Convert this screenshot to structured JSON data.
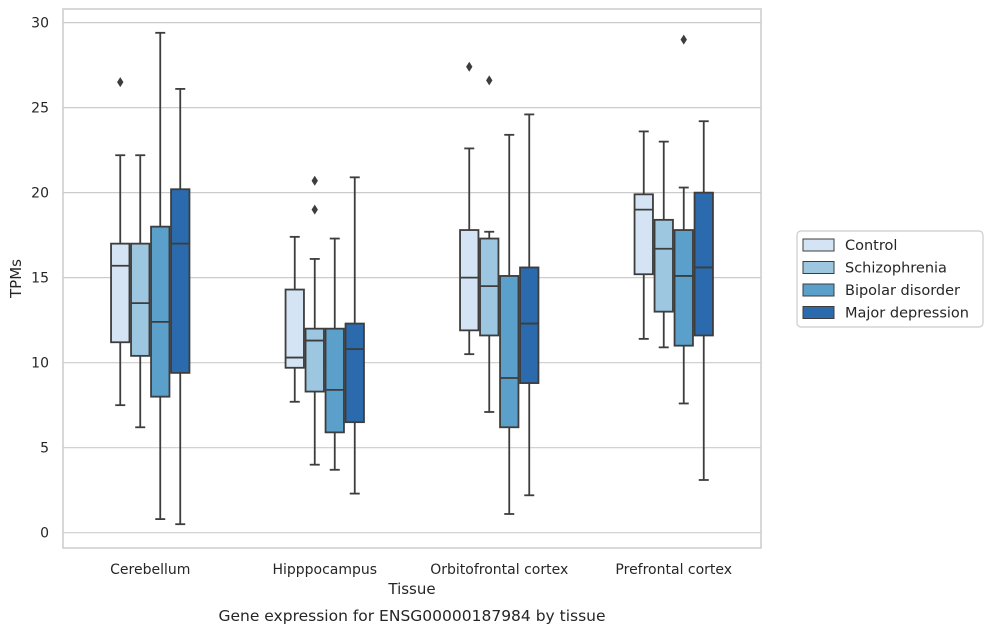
{
  "chart_data": {
    "type": "box",
    "title": "Gene expression for ENSG00000187984 by tissue",
    "xlabel": "Tissue",
    "ylabel": "TPMs",
    "ylim": [
      -0.9,
      30.8
    ],
    "yticks": [
      0,
      5,
      10,
      15,
      20,
      25,
      30
    ],
    "grid": true,
    "legend_position": "right",
    "categories": [
      "Cerebellum",
      "Hipppocampus",
      "Orbitofrontal cortex",
      "Prefrontal cortex"
    ],
    "series": [
      {
        "name": "Control",
        "color": "#d4e4f4",
        "boxes": [
          {
            "whislo": 7.5,
            "q1": 11.2,
            "med": 15.7,
            "q3": 17.0,
            "whishi": 22.2,
            "fliers": [
              26.5
            ]
          },
          {
            "whislo": 7.7,
            "q1": 9.7,
            "med": 10.3,
            "q3": 14.3,
            "whishi": 17.4,
            "fliers": []
          },
          {
            "whislo": 10.5,
            "q1": 11.9,
            "med": 15.0,
            "q3": 17.8,
            "whishi": 22.6,
            "fliers": [
              27.4
            ]
          },
          {
            "whislo": 11.4,
            "q1": 15.2,
            "med": 19.0,
            "q3": 19.9,
            "whishi": 23.6,
            "fliers": []
          }
        ]
      },
      {
        "name": "Schizophrenia",
        "color": "#9dc6e0",
        "boxes": [
          {
            "whislo": 6.2,
            "q1": 10.4,
            "med": 13.5,
            "q3": 17.0,
            "whishi": 22.2,
            "fliers": []
          },
          {
            "whislo": 4.0,
            "q1": 8.3,
            "med": 11.3,
            "q3": 12.0,
            "whishi": 16.1,
            "fliers": [
              19.0,
              20.7
            ]
          },
          {
            "whislo": 7.1,
            "q1": 11.6,
            "med": 14.5,
            "q3": 17.3,
            "whishi": 17.7,
            "fliers": [
              26.6
            ]
          },
          {
            "whislo": 10.9,
            "q1": 13.0,
            "med": 16.7,
            "q3": 18.4,
            "whishi": 23.0,
            "fliers": []
          }
        ]
      },
      {
        "name": "Bipolar disorder",
        "color": "#5b9fcb",
        "boxes": [
          {
            "whislo": 0.8,
            "q1": 8.0,
            "med": 12.4,
            "q3": 18.0,
            "whishi": 29.4,
            "fliers": []
          },
          {
            "whislo": 3.7,
            "q1": 5.9,
            "med": 8.4,
            "q3": 12.0,
            "whishi": 17.3,
            "fliers": []
          },
          {
            "whislo": 1.1,
            "q1": 6.2,
            "med": 9.1,
            "q3": 15.1,
            "whishi": 23.4,
            "fliers": []
          },
          {
            "whislo": 7.6,
            "q1": 11.0,
            "med": 15.1,
            "q3": 17.8,
            "whishi": 20.3,
            "fliers": [
              29.0
            ]
          }
        ]
      },
      {
        "name": "Major depression",
        "color": "#2a6aad",
        "boxes": [
          {
            "whislo": 0.5,
            "q1": 9.4,
            "med": 17.0,
            "q3": 20.2,
            "whishi": 26.1,
            "fliers": []
          },
          {
            "whislo": 2.3,
            "q1": 6.5,
            "med": 10.8,
            "q3": 12.3,
            "whishi": 20.9,
            "fliers": []
          },
          {
            "whislo": 2.2,
            "q1": 8.8,
            "med": 12.3,
            "q3": 15.6,
            "whishi": 24.6,
            "fliers": []
          },
          {
            "whislo": 3.1,
            "q1": 11.6,
            "med": 15.6,
            "q3": 20.0,
            "whishi": 24.2,
            "fliers": []
          }
        ]
      }
    ]
  }
}
